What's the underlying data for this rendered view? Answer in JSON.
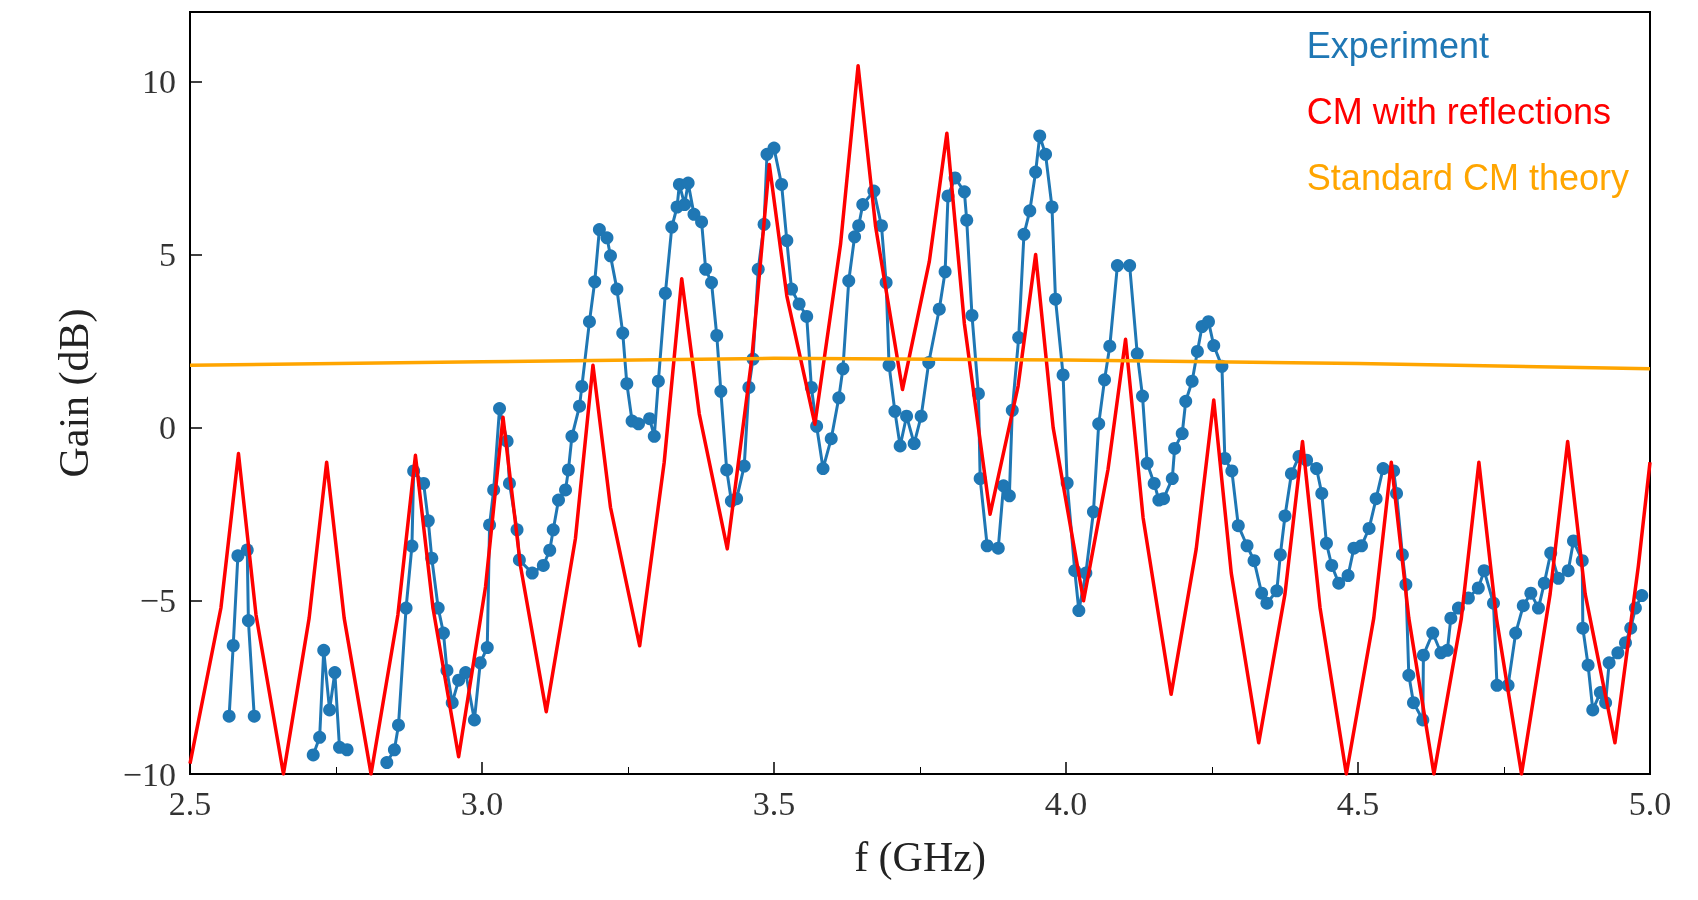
{
  "chart_data": {
    "type": "line",
    "xlabel": "f (GHz)",
    "ylabel": "Gain (dB)",
    "xlim": [
      2.5,
      5.0
    ],
    "xticks": [
      2.5,
      {
        "value": 3.0,
        "label": "3.0"
      },
      3.5,
      {
        "value": 4.0,
        "label": "4.0"
      },
      4.5,
      {
        "value": 5.0,
        "label": "5.0"
      }
    ],
    "ylim": [
      -10,
      12
    ],
    "yticks": [
      {
        "value": -10,
        "label": "−10"
      },
      {
        "value": -5,
        "label": "−5"
      },
      0,
      5,
      10
    ],
    "grid": false,
    "legend": "top right",
    "series": [
      {
        "name": "Experiment",
        "color": "#1f77b4",
        "marker": "circle",
        "x": [
          2.567,
          2.574,
          2.582,
          2.598,
          2.6,
          2.61,
          2.64,
          2.711,
          2.722,
          2.729,
          2.739,
          2.748,
          2.756,
          2.769,
          2.8,
          2.837,
          2.85,
          2.857,
          2.87,
          2.88,
          2.883,
          2.9,
          2.908,
          2.914,
          2.925,
          2.934,
          2.94,
          2.949,
          2.96,
          2.972,
          2.987,
          2.997,
          3.009,
          3.013,
          3.02,
          3.03,
          3.043,
          3.047,
          3.06,
          3.064,
          3.086,
          3.105,
          3.116,
          3.122,
          3.131,
          3.143,
          3.148,
          3.154,
          3.167,
          3.171,
          3.184,
          3.193,
          3.201,
          3.214,
          3.22,
          3.231,
          3.241,
          3.248,
          3.257,
          3.268,
          3.287,
          3.295,
          3.302,
          3.314,
          3.325,
          3.334,
          3.338,
          3.347,
          3.353,
          3.363,
          3.376,
          3.383,
          3.393,
          3.402,
          3.409,
          3.419,
          3.427,
          3.436,
          3.449,
          3.457,
          3.464,
          3.473,
          3.483,
          3.488,
          3.5,
          3.513,
          3.522,
          3.53,
          3.543,
          3.556,
          3.564,
          3.573,
          3.584,
          3.598,
          3.611,
          3.618,
          3.628,
          3.638,
          3.645,
          3.652,
          3.671,
          3.684,
          3.692,
          3.697,
          3.707,
          3.716,
          3.727,
          3.74,
          3.752,
          3.765,
          3.783,
          3.793,
          3.798,
          3.81,
          3.826,
          3.83,
          3.839,
          3.85,
          3.853,
          3.865,
          3.884,
          3.893,
          3.903,
          3.908,
          3.919,
          3.928,
          3.938,
          3.948,
          3.955,
          3.965,
          3.976,
          3.982,
          3.995,
          4.002,
          4.015,
          4.022,
          4.034,
          4.047,
          4.056,
          4.066,
          4.075,
          4.088,
          4.109,
          4.122,
          4.131,
          4.139,
          4.151,
          4.159,
          4.167,
          4.182,
          4.186,
          4.199,
          4.205,
          4.216,
          4.225,
          4.233,
          4.244,
          4.253,
          4.267,
          4.272,
          4.284,
          4.295,
          4.31,
          4.322,
          4.335,
          4.344,
          4.361,
          4.367,
          4.375,
          4.386,
          4.399,
          4.412,
          4.429,
          4.438,
          4.446,
          4.455,
          4.467,
          4.483,
          4.493,
          4.506,
          4.519,
          4.531,
          4.543,
          4.561,
          4.566,
          4.576,
          4.582,
          4.587,
          4.595,
          4.611,
          4.612,
          4.628,
          4.642,
          4.653,
          4.659,
          4.672,
          4.689,
          4.706,
          4.716,
          4.732,
          4.738,
          4.757,
          4.77,
          4.783,
          4.796,
          4.809,
          4.819,
          4.83,
          4.843,
          4.86,
          4.869,
          4.884,
          4.885,
          4.894,
          4.902,
          4.915,
          4.924,
          4.93,
          4.945,
          4.958,
          4.967,
          4.975,
          4.986
        ],
        "values": [
          -8.33,
          -6.29,
          -3.7,
          -3.53,
          -5.57,
          -8.33,
          null,
          -9.45,
          -8.94,
          -6.43,
          -8.15,
          -7.07,
          -9.23,
          -9.3,
          null,
          -9.67,
          -9.3,
          -8.59,
          -5.21,
          -3.42,
          -1.25,
          -1.61,
          -2.69,
          -3.77,
          -5.21,
          -5.93,
          -7.01,
          -7.94,
          -7.29,
          -7.07,
          -8.44,
          -6.79,
          -6.35,
          -2.81,
          -1.8,
          0.55,
          -0.39,
          -1.61,
          -2.95,
          -3.82,
          -4.2,
          -3.98,
          -3.54,
          -2.95,
          -2.09,
          -1.8,
          -1.22,
          -0.25,
          0.62,
          1.19,
          3.06,
          4.21,
          5.72,
          5.48,
          4.96,
          4.0,
          2.73,
          1.27,
          0.19,
          0.11,
          0.26,
          -0.25,
          1.34,
          3.88,
          5.79,
          6.37,
          7.02,
          6.44,
          7.06,
          6.16,
          5.94,
          4.57,
          4.19,
          2.66,
          1.05,
          -1.22,
          -2.12,
          -2.05,
          -1.11,
          1.16,
          1.98,
          4.57,
          5.87,
          7.89,
          8.07,
          7.02,
          5.4,
          4.0,
          3.57,
          3.21,
          1.16,
          0.04,
          -1.18,
          -0.32,
          0.86,
          1.7,
          4.24,
          5.51,
          5.83,
          6.44,
          6.83,
          5.83,
          4.19,
          1.8,
          0.47,
          -0.53,
          0.33,
          -0.46,
          0.33,
          1.88,
          3.42,
          4.5,
          6.69,
          7.21,
          6.81,
          5.99,
          3.24,
          0.98,
          -1.47,
          -3.41,
          -3.48,
          -1.68,
          -1.97,
          0.5,
          2.6,
          5.58,
          6.26,
          7.38,
          8.42,
          7.89,
          6.37,
          3.71,
          1.52,
          -1.6,
          -4.13,
          -5.28,
          -4.2,
          -2.43,
          0.11,
          1.38,
          2.35,
          4.68,
          4.68,
          2.13,
          0.91,
          -1.03,
          -1.61,
          -2.09,
          -2.05,
          -1.47,
          -0.6,
          -0.17,
          0.76,
          1.34,
          2.2,
          2.92,
          3.06,
          2.37,
          1.77,
          -0.89,
          -1.25,
          -2.83,
          -3.41,
          -3.84,
          -4.78,
          -5.07,
          -4.71,
          -3.67,
          -2.55,
          -1.33,
          -0.83,
          -0.94,
          -1.18,
          -1.9,
          -3.34,
          -3.98,
          -4.49,
          -4.27,
          -3.48,
          -3.41,
          -2.91,
          -2.05,
          -1.18,
          -1.25,
          -1.9,
          -3.67,
          -4.53,
          -7.15,
          -7.94,
          -8.44,
          -6.57,
          -5.93,
          -6.5,
          -6.43,
          -5.5,
          -5.21,
          -4.92,
          -4.63,
          -4.13,
          -5.07,
          -7.44,
          -7.44,
          -5.93,
          -5.14,
          -4.78,
          -5.21,
          -4.49,
          -3.62,
          -4.35,
          -4.13,
          -3.27,
          -3.84,
          -5.79,
          -6.86,
          -8.15,
          -7.65,
          -7.94,
          -6.79,
          -6.5,
          -6.21,
          -5.79,
          -5.21,
          -4.85
        ]
      },
      {
        "name": "CM with reflections",
        "color": "#ff0000",
        "marker": "none",
        "x": [
          2.5,
          2.553,
          2.583,
          2.613,
          2.66,
          2.704,
          2.734,
          2.764,
          2.81,
          2.856,
          2.886,
          2.916,
          2.96,
          3.006,
          3.036,
          3.066,
          3.11,
          3.16,
          3.19,
          3.22,
          3.27,
          3.312,
          3.342,
          3.372,
          3.42,
          3.462,
          3.492,
          3.522,
          3.57,
          3.614,
          3.644,
          3.674,
          3.72,
          3.766,
          3.796,
          3.826,
          3.87,
          3.918,
          3.948,
          3.978,
          4.03,
          4.072,
          4.102,
          4.132,
          4.18,
          4.223,
          4.253,
          4.283,
          4.33,
          4.375,
          4.405,
          4.435,
          4.48,
          4.527,
          4.557,
          4.587,
          4.63,
          4.677,
          4.707,
          4.737,
          4.78,
          4.829,
          4.859,
          4.889,
          4.94,
          4.98,
          5.0
        ],
        "values": [
          -9.7,
          -5.2,
          -0.75,
          -5.4,
          -10,
          -5.5,
          -1.0,
          -5.5,
          -10,
          -5.4,
          -0.8,
          -5.2,
          -9.5,
          -4.6,
          0.3,
          -4.0,
          -8.2,
          -3.2,
          1.8,
          -2.3,
          -6.3,
          -1.0,
          4.3,
          0.4,
          -3.5,
          2.0,
          7.6,
          3.8,
          0.1,
          5.3,
          10.45,
          5.8,
          1.1,
          4.8,
          8.5,
          3.0,
          -2.5,
          1.2,
          5.0,
          0.0,
          -5.0,
          -1.2,
          2.55,
          -2.6,
          -7.7,
          -3.5,
          0.8,
          -4.2,
          -9.1,
          -4.8,
          -0.4,
          -5.2,
          -10,
          -5.5,
          -1.0,
          -5.5,
          -10,
          -5.5,
          -1.0,
          -5.5,
          -10,
          -4.8,
          -0.4,
          -4.8,
          -9.1,
          -4.0,
          -1.0
        ]
      },
      {
        "name": "Standard CM theory",
        "color": "#ffa500",
        "marker": "none",
        "x": [
          2.5,
          3.0,
          3.5,
          4.0,
          4.5,
          5.0
        ],
        "values": [
          1.8,
          1.9,
          2.0,
          1.95,
          1.85,
          1.7
        ]
      }
    ]
  }
}
